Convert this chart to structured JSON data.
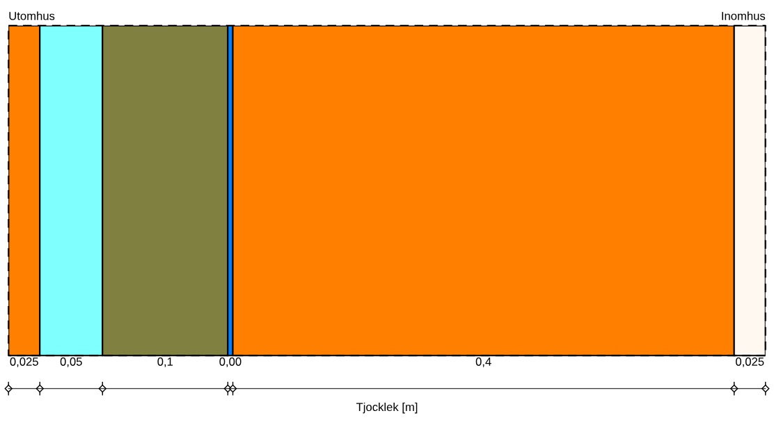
{
  "chart_data": {
    "type": "bar",
    "orientation": "horizontal",
    "stacked": true,
    "categories": [
      null
    ],
    "xlabel": "Tjocklek [m]",
    "annotations": [
      "Utomhus",
      "Inomhus"
    ],
    "series": [
      {
        "color": "#ff8000",
        "values": [
          0.025
        ],
        "value_labels": [
          "0,025"
        ]
      },
      {
        "color": "#80ffff",
        "values": [
          0.05
        ],
        "value_labels": [
          "0,05"
        ]
      },
      {
        "color": "#808040",
        "values": [
          0.1
        ],
        "value_labels": [
          "0,1"
        ]
      },
      {
        "color": "#0080ff",
        "values": [
          0.004
        ],
        "value_labels": [
          "0,00"
        ]
      },
      {
        "color": "#ff8000",
        "values": [
          0.4
        ],
        "value_labels": [
          "0,4"
        ]
      },
      {
        "color": "#fff8f0",
        "values": [
          0.025
        ],
        "value_labels": [
          "0,025"
        ]
      }
    ]
  }
}
